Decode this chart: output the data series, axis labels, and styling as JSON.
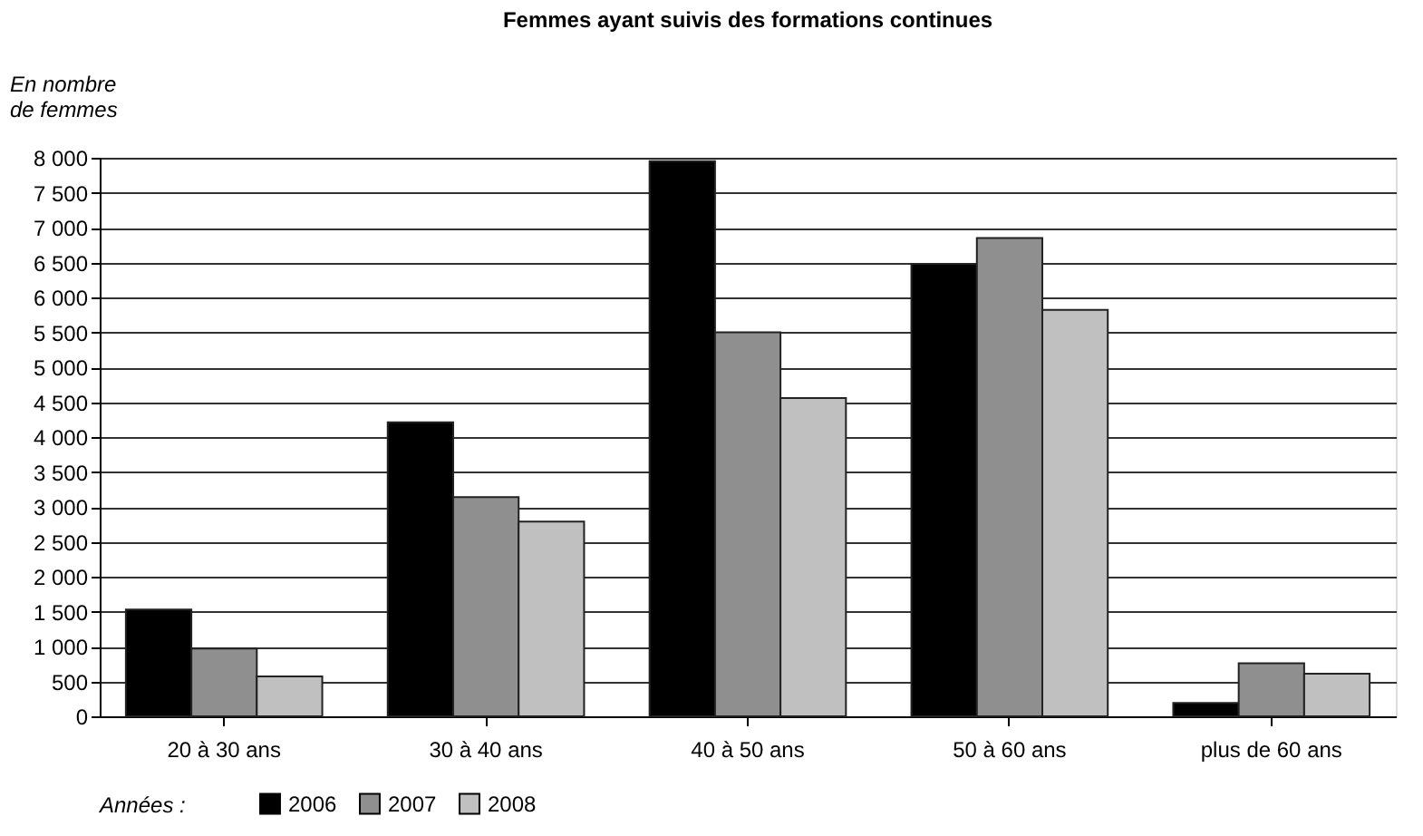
{
  "chart_data": {
    "type": "bar",
    "title": "Femmes ayant suivis des formations continues",
    "ylabel": "En nombre de femmes",
    "legend_title": "Années :",
    "categories": [
      "20 à 30 ans",
      "30 à 40 ans",
      "40 à 50 ans",
      "50 à 60 ans",
      "plus de 60 ans"
    ],
    "series": [
      {
        "name": "2006",
        "color": "#000000",
        "values": [
          1530,
          4210,
          7950,
          6480,
          190
        ]
      },
      {
        "name": "2007",
        "color": "#8f8f8f",
        "values": [
          970,
          3140,
          5500,
          6850,
          760
        ]
      },
      {
        "name": "2008",
        "color": "#c0c0c0",
        "values": [
          570,
          2790,
          4560,
          5820,
          610
        ]
      }
    ],
    "ylim": [
      0,
      8000
    ],
    "yticks": [
      0,
      500,
      {
        "value": 1000,
        "label": "1 000"
      },
      {
        "value": 1500,
        "label": "1 500"
      },
      {
        "value": 2000,
        "label": "2 000"
      },
      {
        "value": 2500,
        "label": "2 500"
      },
      {
        "value": 3000,
        "label": "3 000"
      },
      {
        "value": 3500,
        "label": "3 500"
      },
      {
        "value": 4000,
        "label": "4 000"
      },
      {
        "value": 4500,
        "label": "4 500"
      },
      {
        "value": 5000,
        "label": "5 000"
      },
      {
        "value": 5500,
        "label": "5 500"
      },
      {
        "value": 6000,
        "label": "6 000"
      },
      {
        "value": 6500,
        "label": "6 500"
      },
      {
        "value": 7000,
        "label": "7 000"
      },
      {
        "value": 7500,
        "label": "7 500"
      },
      {
        "value": 8000,
        "label": "8 000"
      }
    ],
    "grid": "y",
    "legend": "bottom"
  }
}
